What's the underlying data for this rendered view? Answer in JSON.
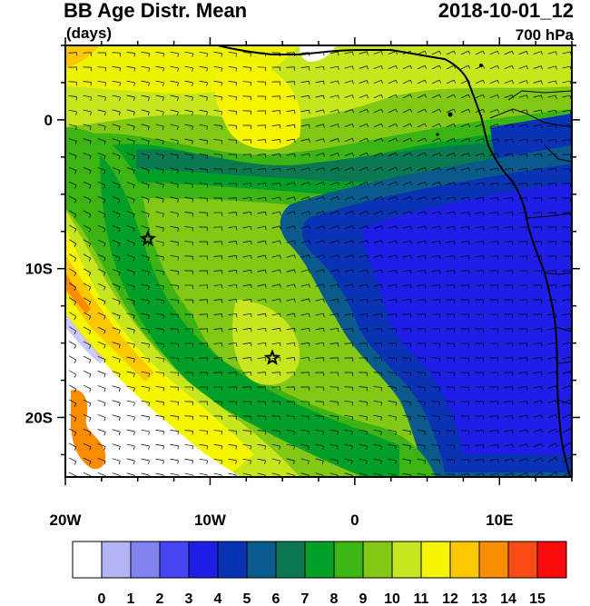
{
  "header": {
    "title": "BB Age Distr. Mean",
    "units": "(days)",
    "datetime": "2018-10-01_12",
    "level": "700 hPa"
  },
  "map": {
    "lon_range": [
      -20,
      15
    ],
    "lat_range": [
      -24,
      5
    ],
    "lon_ticks": [
      {
        "value": -20,
        "label": "20W"
      },
      {
        "value": -10,
        "label": "10W"
      },
      {
        "value": 0,
        "label": "0"
      },
      {
        "value": 10,
        "label": "10E"
      }
    ],
    "lat_ticks": [
      {
        "value": 0,
        "label": "0"
      },
      {
        "value": -10,
        "label": "10S"
      },
      {
        "value": -20,
        "label": "20S"
      }
    ],
    "markers": [
      {
        "type": "star",
        "lon": -14.3,
        "lat": -8.0
      },
      {
        "type": "star",
        "lon": -5.7,
        "lat": -16.0
      }
    ]
  },
  "colorbar": {
    "labels": [
      "0",
      "1",
      "2",
      "3",
      "4",
      "5",
      "6",
      "7",
      "8",
      "9",
      "10",
      "11",
      "12",
      "13",
      "14",
      "15"
    ],
    "colors": [
      "#ffffff",
      "#b4b4f5",
      "#8282ef",
      "#4646f5",
      "#1e1ee6",
      "#0a32b4",
      "#0a5a8c",
      "#0a7850",
      "#00a028",
      "#3cb414",
      "#82c814",
      "#c8e61e",
      "#f5f500",
      "#fac800",
      "#fa8c00",
      "#fa4b14",
      "#fa0a0a"
    ]
  }
}
